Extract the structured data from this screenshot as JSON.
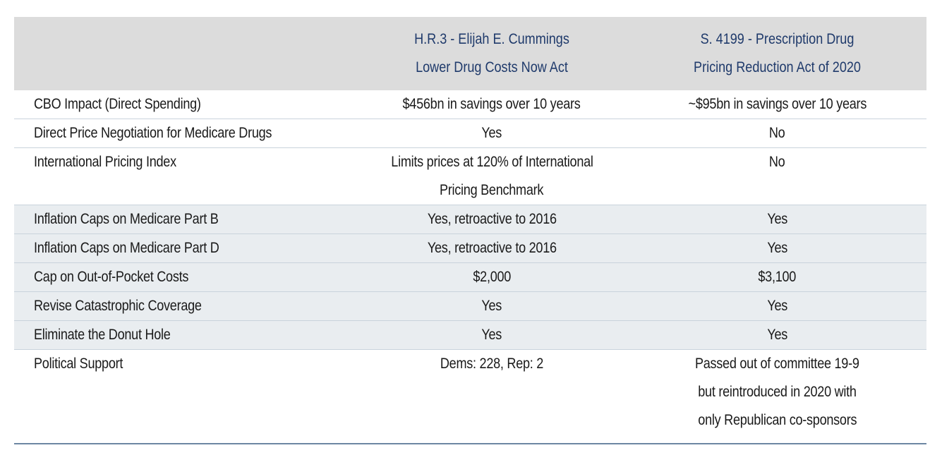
{
  "header": {
    "col1": "",
    "col2_line1": "H.R.3 - Elijah E. Cummings",
    "col2_line2": "Lower Drug Costs Now Act",
    "col3_line1": "S. 4199 - Prescription Drug",
    "col3_line2": "Pricing Reduction Act of 2020"
  },
  "rows": [
    {
      "label": "CBO Impact (Direct Spending)",
      "hr3": [
        "$456bn in savings over 10 years"
      ],
      "s4199": [
        "~$95bn in savings over 10 years"
      ],
      "shaded": false
    },
    {
      "label": "Direct Price Negotiation for Medicare Drugs",
      "hr3": [
        "Yes"
      ],
      "s4199": [
        "No"
      ],
      "shaded": false
    },
    {
      "label": "International Pricing Index",
      "hr3": [
        "Limits prices at 120% of International",
        "Pricing Benchmark"
      ],
      "s4199": [
        "No"
      ],
      "shaded": false
    },
    {
      "label": "Inflation Caps on Medicare Part B",
      "hr3": [
        "Yes, retroactive to 2016"
      ],
      "s4199": [
        "Yes"
      ],
      "shaded": true
    },
    {
      "label": "Inflation Caps on Medicare Part D",
      "hr3": [
        "Yes, retroactive to 2016"
      ],
      "s4199": [
        "Yes"
      ],
      "shaded": true
    },
    {
      "label": "Cap on Out-of-Pocket Costs",
      "hr3": [
        "$2,000"
      ],
      "s4199": [
        "$3,100"
      ],
      "shaded": true
    },
    {
      "label": "Revise Catastrophic Coverage",
      "hr3": [
        "Yes"
      ],
      "s4199": [
        "Yes"
      ],
      "shaded": true
    },
    {
      "label": "Eliminate the Donut Hole",
      "hr3": [
        "Yes"
      ],
      "s4199": [
        "Yes"
      ],
      "shaded": true
    },
    {
      "label": "Political Support",
      "hr3": [
        "Dems: 228, Rep:  2"
      ],
      "s4199": [
        "Passed out of committee 19-9",
        "but reintroduced in 2020 with",
        "only Republican co-sponsors"
      ],
      "shaded": false
    }
  ]
}
